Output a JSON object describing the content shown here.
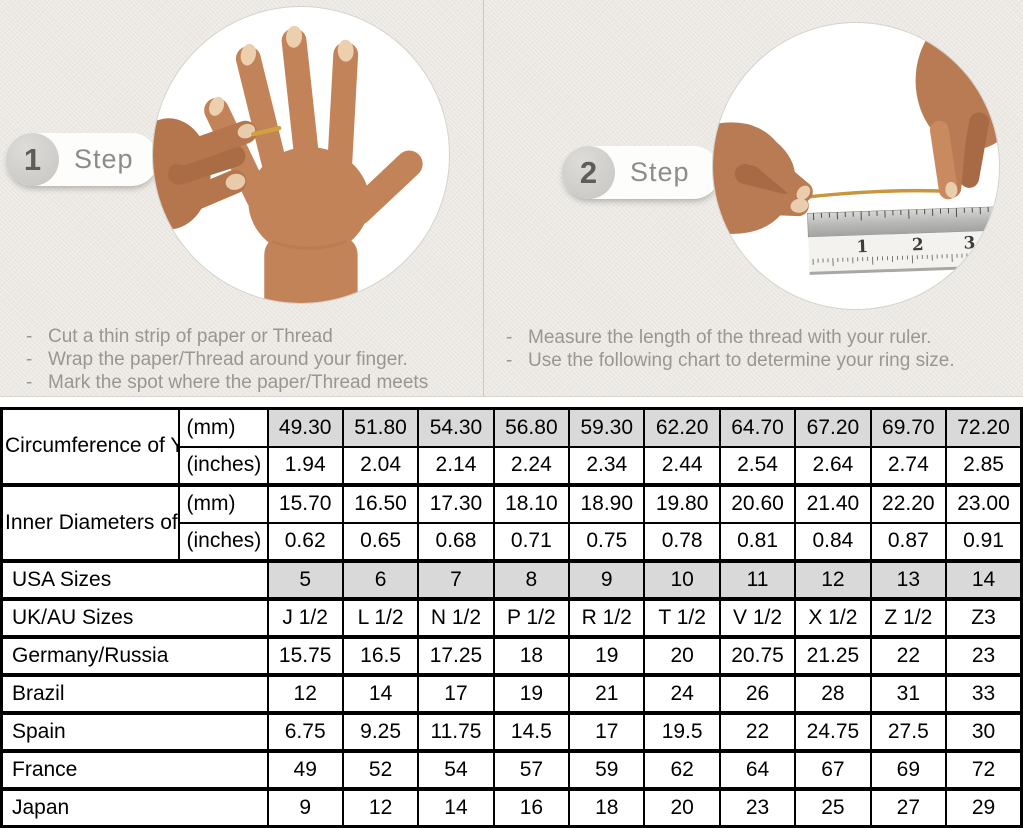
{
  "ui": {
    "bullet": "-"
  },
  "colors": {
    "top_background": "#ebe8e3",
    "shaded_cell": "#d9d9d9",
    "table_border": "#000000",
    "step_text_gray": "#8d8c8a",
    "instruction_gray": "#9a968f",
    "thread_gold": "#c8963c"
  },
  "steps": [
    {
      "number": "1",
      "label": "Step",
      "instructions": [
        "Cut a thin strip of paper or Thread",
        "Wrap the paper/Thread around your finger.",
        "Mark the spot where the paper/Thread meets"
      ]
    },
    {
      "number": "2",
      "label": "Step",
      "instructions": [
        "Measure the length of the thread with your ruler.",
        "Use the following chart to determine your ring size."
      ]
    }
  ],
  "photos": {
    "ruler_numbers": [
      "1",
      "2",
      "3"
    ]
  },
  "chart_data": {
    "type": "table",
    "header_groups": [
      {
        "label": "Circumference of Your Finger",
        "rows": [
          {
            "unit": "(mm)",
            "shaded": true,
            "values": [
              "49.30",
              "51.80",
              "54.30",
              "56.80",
              "59.30",
              "62.20",
              "64.70",
              "67.20",
              "69.70",
              "72.20"
            ]
          },
          {
            "unit": "(inches)",
            "shaded": false,
            "values": [
              "1.94",
              "2.04",
              "2.14",
              "2.24",
              "2.34",
              "2.44",
              "2.54",
              "2.64",
              "2.74",
              "2.85"
            ]
          }
        ]
      },
      {
        "label": "Inner Diameters of Rings",
        "rows": [
          {
            "unit": "(mm)",
            "shaded": false,
            "values": [
              "15.70",
              "16.50",
              "17.30",
              "18.10",
              "18.90",
              "19.80",
              "20.60",
              "21.40",
              "22.20",
              "23.00"
            ]
          },
          {
            "unit": "(inches)",
            "shaded": false,
            "values": [
              "0.62",
              "0.65",
              "0.68",
              "0.71",
              "0.75",
              "0.78",
              "0.81",
              "0.84",
              "0.87",
              "0.91"
            ]
          }
        ]
      }
    ],
    "size_rows": [
      {
        "label": "USA Sizes",
        "shaded": true,
        "values": [
          "5",
          "6",
          "7",
          "8",
          "9",
          "10",
          "11",
          "12",
          "13",
          "14"
        ]
      },
      {
        "label": "UK/AU Sizes",
        "shaded": false,
        "values": [
          "J 1/2",
          "L 1/2",
          "N 1/2",
          "P 1/2",
          "R 1/2",
          "T 1/2",
          "V 1/2",
          "X 1/2",
          "Z 1/2",
          "Z3"
        ]
      },
      {
        "label": "Germany/Russia",
        "shaded": false,
        "values": [
          "15.75",
          "16.5",
          "17.25",
          "18",
          "19",
          "20",
          "20.75",
          "21.25",
          "22",
          "23"
        ]
      },
      {
        "label": "Brazil",
        "shaded": false,
        "values": [
          "12",
          "14",
          "17",
          "19",
          "21",
          "24",
          "26",
          "28",
          "31",
          "33"
        ]
      },
      {
        "label": "Spain",
        "shaded": false,
        "values": [
          "6.75",
          "9.25",
          "11.75",
          "14.5",
          "17",
          "19.5",
          "22",
          "24.75",
          "27.5",
          "30"
        ]
      },
      {
        "label": "France",
        "shaded": false,
        "values": [
          "49",
          "52",
          "54",
          "57",
          "59",
          "62",
          "64",
          "67",
          "69",
          "72"
        ]
      },
      {
        "label": "Japan",
        "shaded": false,
        "values": [
          "9",
          "12",
          "14",
          "16",
          "18",
          "20",
          "23",
          "25",
          "27",
          "29"
        ]
      }
    ]
  }
}
